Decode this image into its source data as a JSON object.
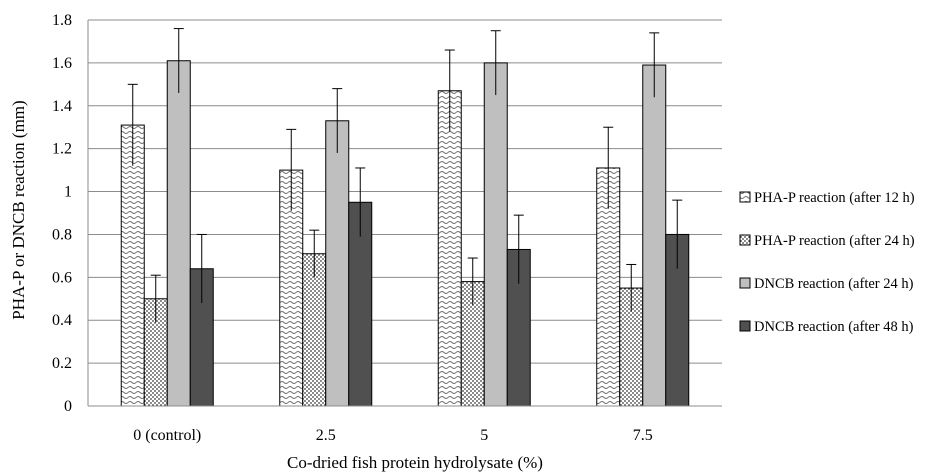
{
  "chart_data": {
    "type": "bar",
    "xlabel": "Co-dried fish protein hydrolysate (%)",
    "ylabel": "PHA-P or DNCB reaction (mm)",
    "ylim": [
      0,
      1.8
    ],
    "yticks": [
      "0",
      "0.2",
      "0.4",
      "0.6",
      "0.8",
      "1",
      "1.2",
      "1.4",
      "1.6",
      "1.8"
    ],
    "categories": [
      "0 (control)",
      "2.5",
      "5",
      "7.5"
    ],
    "grid": true,
    "legend_position": "right",
    "series": [
      {
        "name": "PHA-P reaction (after 12 h)",
        "values": [
          1.31,
          1.1,
          1.47,
          1.11
        ],
        "errors": [
          0.19,
          0.19,
          0.19,
          0.19
        ],
        "fill": "#ffffff",
        "pattern": "wave"
      },
      {
        "name": "PHA-P reaction (after 24 h)",
        "values": [
          0.5,
          0.71,
          0.58,
          0.55
        ],
        "errors": [
          0.11,
          0.11,
          0.11,
          0.11
        ],
        "fill": "#ffffff",
        "pattern": "dots"
      },
      {
        "name": "DNCB reaction (after 24 h)",
        "values": [
          1.61,
          1.33,
          1.6,
          1.59
        ],
        "errors": [
          0.15,
          0.15,
          0.15,
          0.15
        ],
        "fill": "#bfbfbf",
        "pattern": "solid"
      },
      {
        "name": "DNCB reaction (after 48 h)",
        "values": [
          0.64,
          0.95,
          0.73,
          0.8
        ],
        "errors": [
          0.16,
          0.16,
          0.16,
          0.16
        ],
        "fill": "#505050",
        "pattern": "solid"
      }
    ]
  }
}
